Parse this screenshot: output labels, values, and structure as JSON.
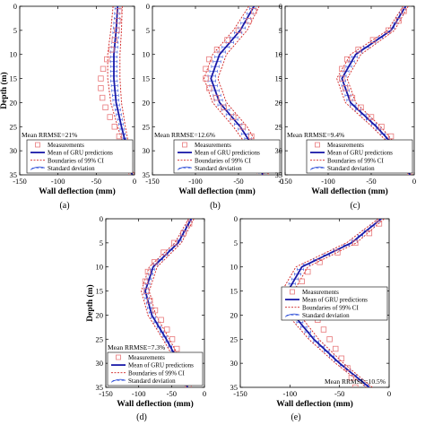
{
  "chart_data": [
    {
      "panel_label": "(a)",
      "type": "line",
      "xlabel": "Wall deflection (mm)",
      "ylabel": "Depth (m)",
      "xlim": [
        -150,
        0
      ],
      "ylim": [
        0,
        35
      ],
      "xticks": [
        "-150",
        "-100",
        "-50",
        "0"
      ],
      "yticks": [
        "0",
        "5",
        "10",
        "15",
        "20",
        "25",
        "30",
        "35"
      ],
      "annotation": "Mean RRMSE=21%",
      "legend_position": "bottom-right",
      "legend": [
        "Measurements",
        "Mean of GRU predictions",
        "Boundaries of 99% CI",
        "Standard deviation"
      ],
      "measurements": {
        "depth": [
          1,
          3,
          5,
          7,
          9,
          11,
          13,
          15,
          17,
          19,
          21,
          23,
          25,
          27,
          29,
          31,
          33,
          35
        ],
        "deflection": [
          -20,
          -21,
          -23,
          -26,
          -30,
          -36,
          -41,
          -44,
          -44,
          -42,
          -38,
          -32,
          -26,
          -20,
          -14,
          -9,
          -6,
          -4
        ]
      },
      "mean": {
        "depth": [
          0,
          5,
          10,
          15,
          20,
          25,
          30,
          35
        ],
        "deflection": [
          -22,
          -24,
          -27,
          -27,
          -24,
          -17,
          -9,
          -3
        ]
      },
      "ci_lower": {
        "depth": [
          0,
          5,
          10,
          15,
          20,
          25,
          30,
          35
        ],
        "deflection": [
          -28,
          -31,
          -35,
          -35,
          -31,
          -22,
          -12,
          -4
        ]
      },
      "ci_upper": {
        "depth": [
          0,
          5,
          10,
          15,
          20,
          25,
          30,
          35
        ],
        "deflection": [
          -16,
          -17,
          -19,
          -19,
          -17,
          -12,
          -6,
          -2
        ]
      }
    },
    {
      "panel_label": "(b)",
      "type": "line",
      "xlabel": "Wall deflection (mm)",
      "ylabel": "",
      "xlim": [
        -150,
        0
      ],
      "ylim": [
        0,
        35
      ],
      "xticks": [
        "-150",
        "-100",
        "-50",
        "0"
      ],
      "yticks": [
        "0",
        "5",
        "10",
        "15",
        "20",
        "25",
        "30",
        "35"
      ],
      "annotation": "Mean RRMSE=12.6%",
      "legend_position": "bottom-right",
      "legend": [
        "Measurements",
        "Mean of GRU predictions",
        "Boundaries of 99% CI",
        "Standard deviation"
      ],
      "measurements": {
        "depth": [
          1,
          3,
          5,
          7,
          9,
          11,
          13,
          15,
          17,
          19,
          21,
          23,
          25,
          27,
          29,
          31,
          33,
          35
        ],
        "deflection": [
          -32,
          -38,
          -50,
          -63,
          -75,
          -84,
          -88,
          -88,
          -84,
          -76,
          -67,
          -56,
          -45,
          -35,
          -27,
          -22,
          -19,
          -18
        ]
      },
      "mean": {
        "depth": [
          0,
          5,
          10,
          15,
          20,
          25,
          30,
          35
        ],
        "deflection": [
          -32,
          -48,
          -72,
          -82,
          -72,
          -48,
          -30,
          -22
        ]
      },
      "ci_lower": {
        "depth": [
          0,
          5,
          10,
          15,
          20,
          25,
          30,
          35
        ],
        "deflection": [
          -38,
          -56,
          -80,
          -90,
          -80,
          -56,
          -36,
          -28
        ]
      },
      "ci_upper": {
        "depth": [
          0,
          5,
          10,
          15,
          20,
          25,
          30,
          35
        ],
        "deflection": [
          -26,
          -40,
          -64,
          -74,
          -64,
          -40,
          -24,
          -16
        ]
      }
    },
    {
      "panel_label": "(c)",
      "type": "line",
      "xlabel": "Wall deflection (mm)",
      "ylabel": "",
      "xlim": [
        -150,
        0
      ],
      "ylim": [
        0,
        35
      ],
      "xticks": [
        "-150",
        "-100",
        "-50",
        "0"
      ],
      "yticks": [
        "0",
        "5",
        "10",
        "15",
        "20",
        "25",
        "30",
        "35"
      ],
      "annotation": "Mean RRMSE=9.4%",
      "legend_position": "bottom-right",
      "legend": [
        "Measurements",
        "Mean of GRU predictions",
        "Boundaries of 99% CI",
        "Standard deviation"
      ],
      "measurements": {
        "depth": [
          1,
          3,
          5,
          7,
          9,
          11,
          13,
          15,
          17,
          19,
          21,
          23,
          25,
          27,
          29,
          31,
          33,
          35
        ],
        "deflection": [
          -12,
          -18,
          -30,
          -48,
          -65,
          -78,
          -84,
          -84,
          -80,
          -72,
          -62,
          -50,
          -38,
          -27,
          -18,
          -11,
          -7,
          -5
        ]
      },
      "mean": {
        "depth": [
          0,
          5,
          10,
          15,
          20,
          25,
          30,
          35
        ],
        "deflection": [
          -10,
          -27,
          -68,
          -84,
          -74,
          -44,
          -18,
          -5
        ]
      },
      "ci_lower": {
        "depth": [
          0,
          5,
          10,
          15,
          20,
          25,
          30,
          35
        ],
        "deflection": [
          -13,
          -31,
          -74,
          -90,
          -80,
          -49,
          -21,
          -6
        ]
      },
      "ci_upper": {
        "depth": [
          0,
          5,
          10,
          15,
          20,
          25,
          30,
          35
        ],
        "deflection": [
          -7,
          -23,
          -62,
          -78,
          -68,
          -39,
          -15,
          -4
        ]
      }
    },
    {
      "panel_label": "(d)",
      "type": "line",
      "xlabel": "Wall deflection (mm)",
      "ylabel": "Depth (m)",
      "xlim": [
        -150,
        0
      ],
      "ylim": [
        0,
        35
      ],
      "xticks": [
        "-150",
        "-100",
        "-50",
        "0"
      ],
      "yticks": [
        "0",
        "5",
        "10",
        "15",
        "20",
        "25",
        "30",
        "35"
      ],
      "annotation": "Mean RRMSE=7.3%",
      "legend_position": "bottom-right",
      "legend": [
        "Measurements",
        "Mean of GRU predictions",
        "Boundaries of 99% CI",
        "Standard deviation"
      ],
      "measurements": {
        "depth": [
          1,
          3,
          5,
          7,
          9,
          11,
          13,
          15,
          17,
          19,
          21,
          23,
          25,
          27,
          29,
          31,
          33,
          35
        ],
        "deflection": [
          -23,
          -32,
          -46,
          -62,
          -76,
          -86,
          -90,
          -88,
          -83,
          -75,
          -66,
          -57,
          -49,
          -42,
          -36,
          -31,
          -27,
          -24
        ]
      },
      "mean": {
        "depth": [
          0,
          5,
          10,
          15,
          20,
          25,
          30,
          35
        ],
        "deflection": [
          -20,
          -40,
          -78,
          -90,
          -80,
          -58,
          -38,
          -26
        ]
      },
      "ci_lower": {
        "depth": [
          0,
          5,
          10,
          15,
          20,
          25,
          30,
          35
        ],
        "deflection": [
          -24,
          -45,
          -84,
          -96,
          -86,
          -63,
          -42,
          -29
        ]
      },
      "ci_upper": {
        "depth": [
          0,
          5,
          10,
          15,
          20,
          25,
          30,
          35
        ],
        "deflection": [
          -16,
          -35,
          -72,
          -84,
          -74,
          -53,
          -34,
          -23
        ]
      }
    },
    {
      "panel_label": "(e)",
      "type": "line",
      "xlabel": "Wall deflection (mm)",
      "ylabel": "",
      "xlim": [
        -150,
        0
      ],
      "ylim": [
        0,
        35
      ],
      "xticks": [
        "-150",
        "-100",
        "-50",
        "0"
      ],
      "yticks": [
        "0",
        "5",
        "10",
        "15",
        "20",
        "25",
        "30",
        "35"
      ],
      "annotation": "Mean RRMSE=10.5%",
      "legend_position": "top-right",
      "legend": [
        "Measurements",
        "Mean of GRU predictions",
        "Boundaries of 99% CI",
        "Standard deviation"
      ],
      "measurements": {
        "depth": [
          1,
          3,
          5,
          7,
          9,
          11,
          13,
          15,
          17,
          19,
          21,
          23,
          25,
          27,
          29,
          31,
          33,
          35
        ],
        "deflection": [
          -10,
          -20,
          -34,
          -52,
          -70,
          -82,
          -88,
          -88,
          -84,
          -78,
          -72,
          -66,
          -60,
          -54,
          -48,
          -42,
          -38,
          -34
        ]
      },
      "mean": {
        "depth": [
          0,
          5,
          10,
          15,
          20,
          25,
          30,
          35
        ],
        "deflection": [
          -8,
          -38,
          -88,
          -102,
          -96,
          -76,
          -50,
          -20
        ]
      },
      "ci_lower": {
        "depth": [
          0,
          5,
          10,
          15,
          20,
          25,
          30,
          35
        ],
        "deflection": [
          -11,
          -43,
          -94,
          -108,
          -102,
          -81,
          -54,
          -23
        ]
      },
      "ci_upper": {
        "depth": [
          0,
          5,
          10,
          15,
          20,
          25,
          30,
          35
        ],
        "deflection": [
          -5,
          -33,
          -82,
          -96,
          -90,
          -71,
          -46,
          -17
        ]
      }
    }
  ],
  "colors": {
    "measurements": "#e8787a",
    "mean": "#1a1aa8",
    "ci": "#d02020",
    "std": "#3050d8"
  }
}
